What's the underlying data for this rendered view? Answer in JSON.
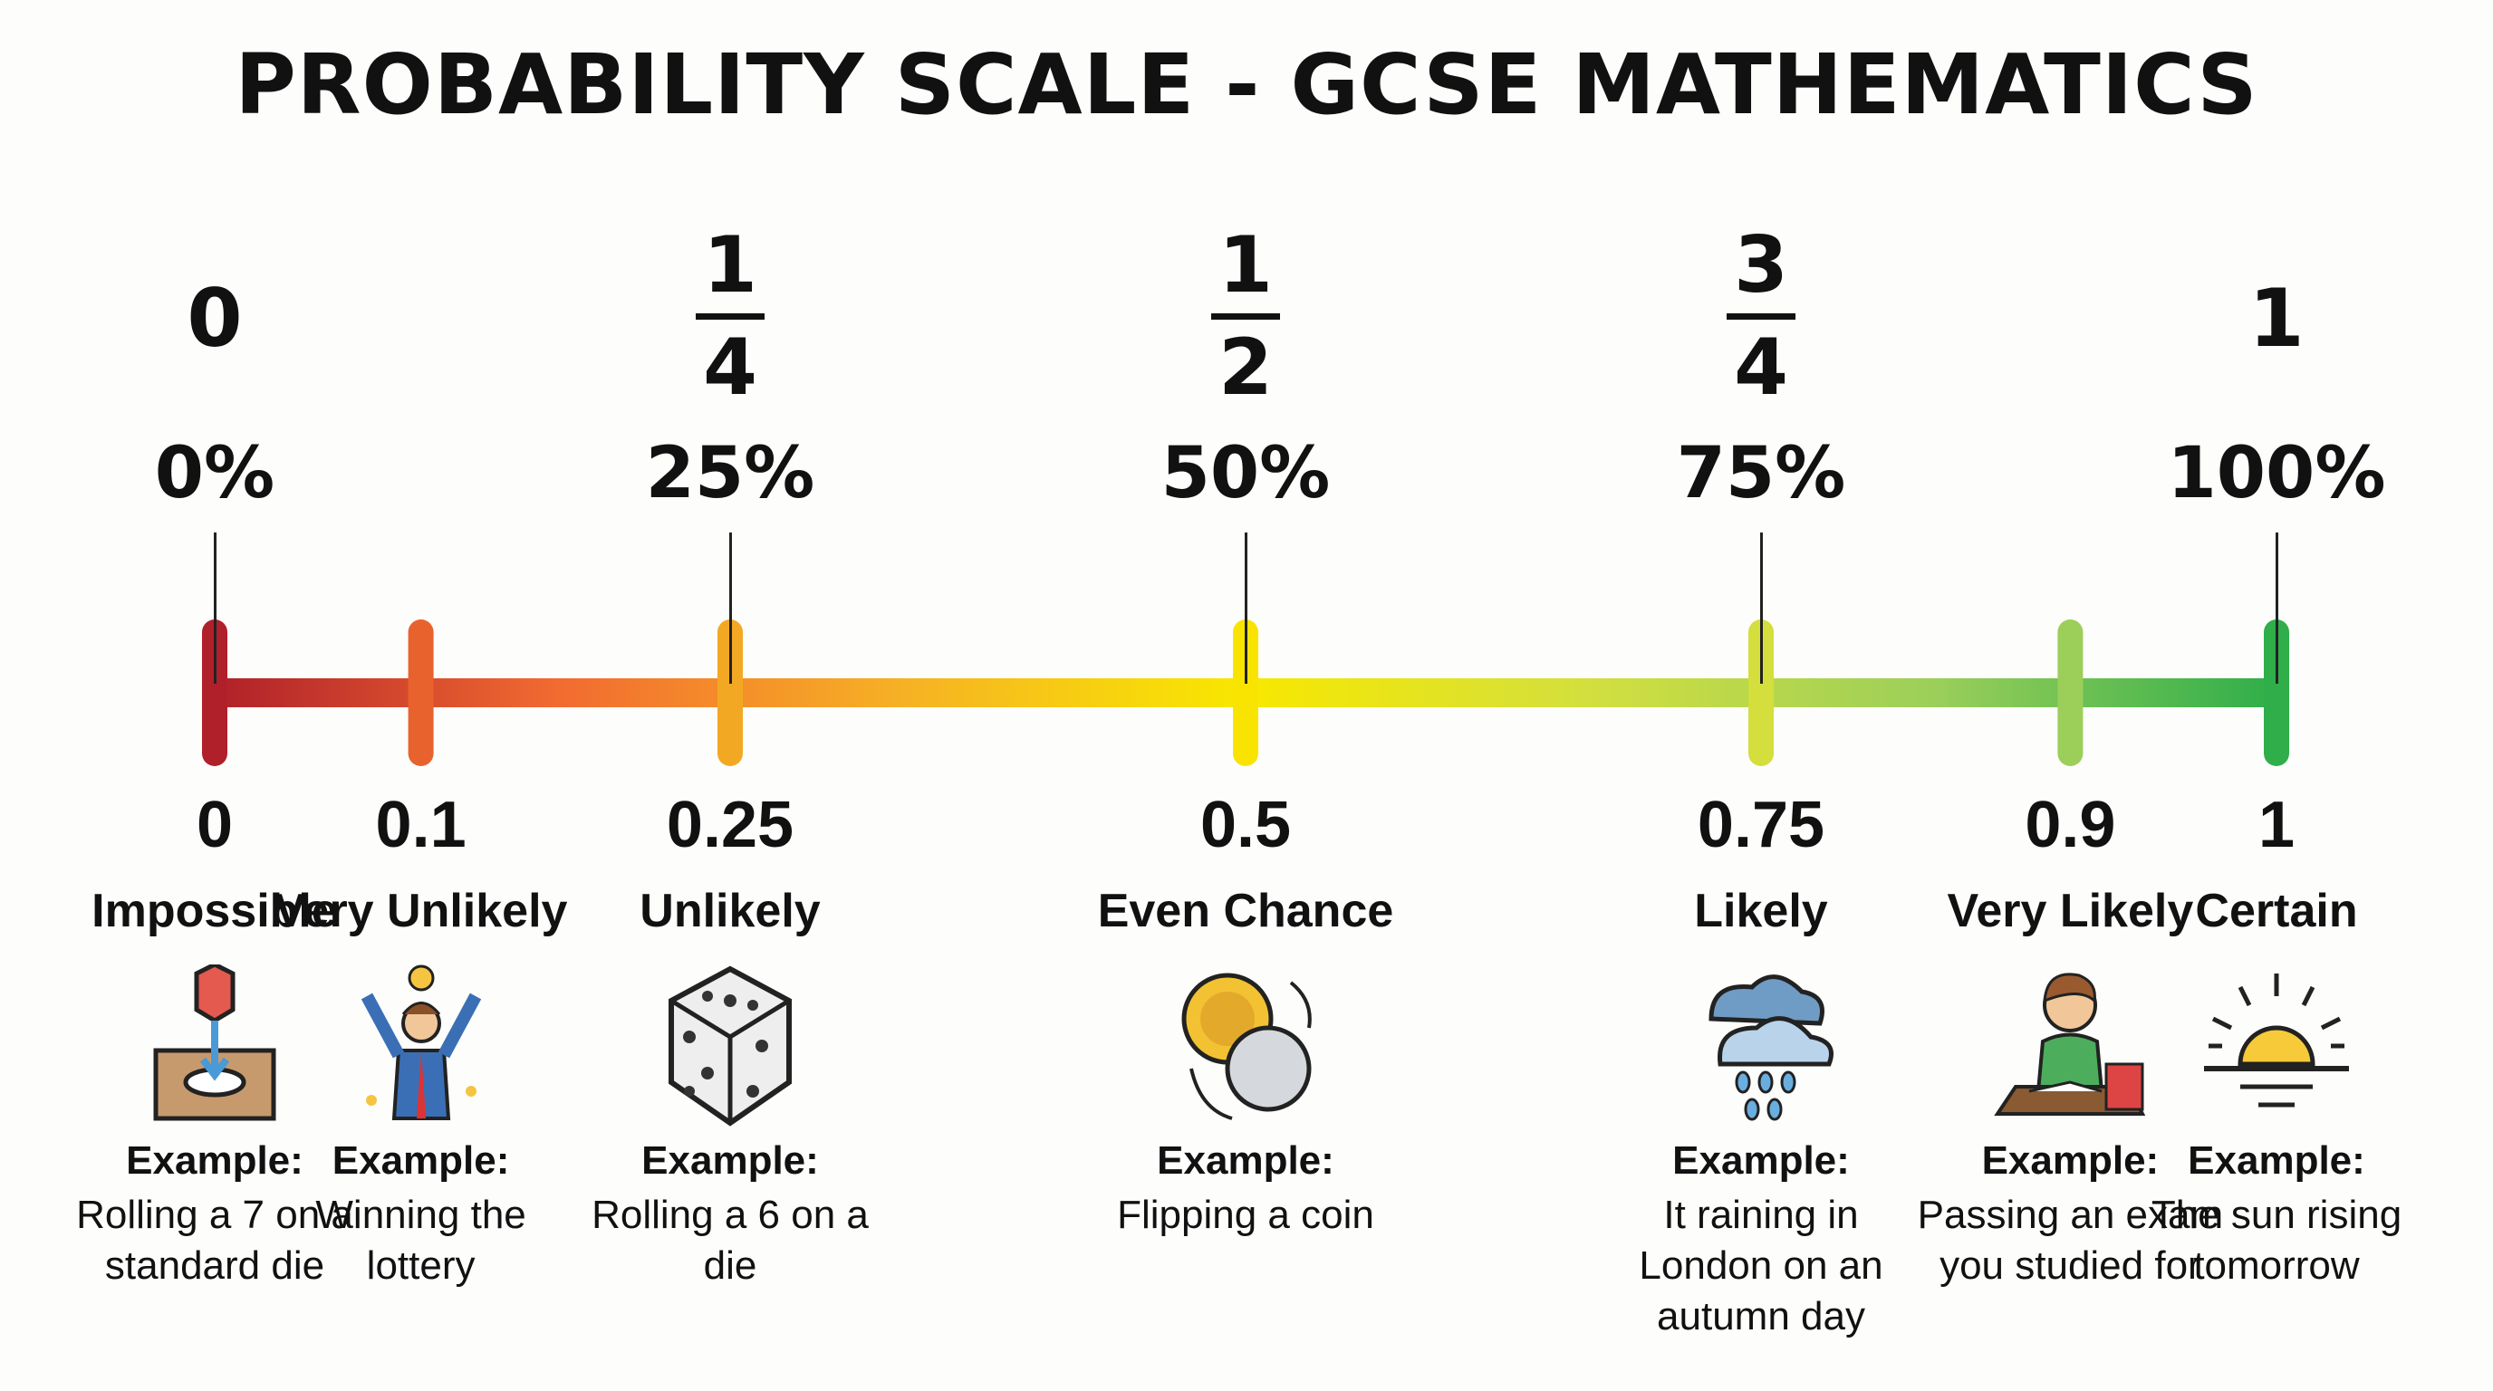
{
  "title": "PROBABILITY SCALE - GCSE MATHEMATICS",
  "top_labels": [
    {
      "value": 0,
      "whole": "0",
      "percent": "0%"
    },
    {
      "value": 0.25,
      "numerator": "1",
      "denominator": "4",
      "percent": "25%"
    },
    {
      "value": 0.5,
      "numerator": "1",
      "denominator": "2",
      "percent": "50%"
    },
    {
      "value": 0.75,
      "numerator": "3",
      "denominator": "4",
      "percent": "75%"
    },
    {
      "value": 1,
      "whole": "1",
      "percent": "100%"
    }
  ],
  "gradient_colors": [
    "#b0202a",
    "#f26b30",
    "#f6b124",
    "#f8e800",
    "#d2df3e",
    "#9ccf5a",
    "#2fae4a"
  ],
  "points": [
    {
      "value": 0,
      "decimal": "0",
      "label": "Impossible",
      "icon": "box-hole-icon",
      "color": "#b0202a",
      "example_label": "Example:",
      "example": [
        "Rolling a 7 on a",
        "standard die"
      ]
    },
    {
      "value": 0.1,
      "decimal": "0.1",
      "label": "Very Unlikely",
      "icon": "lottery-winner-icon",
      "color": "#e8622e",
      "example_label": "Example:",
      "example": [
        "Winning the",
        "lottery"
      ]
    },
    {
      "value": 0.25,
      "decimal": "0.25",
      "label": "Unlikely",
      "icon": "die-icon",
      "color": "#f3a823",
      "example_label": "Example:",
      "example": [
        "Rolling a 6 on a",
        "die"
      ]
    },
    {
      "value": 0.5,
      "decimal": "0.5",
      "label": "Even Chance",
      "icon": "coin-flip-icon",
      "color": "#f8e400",
      "example_label": "Example:",
      "example": [
        "Flipping a coin"
      ]
    },
    {
      "value": 0.75,
      "decimal": "0.75",
      "label": "Likely",
      "icon": "rain-cloud-icon",
      "color": "#d4de3c",
      "example_label": "Example:",
      "example": [
        "It raining in",
        "London on an",
        "autumn day"
      ]
    },
    {
      "value": 0.9,
      "decimal": "0.9",
      "label": "Very Likely",
      "icon": "student-studying-icon",
      "color": "#9ccf5a",
      "example_label": "Example:",
      "example": [
        "Passing an exam",
        "you studied for"
      ]
    },
    {
      "value": 1,
      "decimal": "1",
      "label": "Certain",
      "icon": "sunrise-icon",
      "color": "#2fae4a",
      "example_label": "Example:",
      "example": [
        "The sun rising",
        "tomorrow"
      ]
    }
  ]
}
